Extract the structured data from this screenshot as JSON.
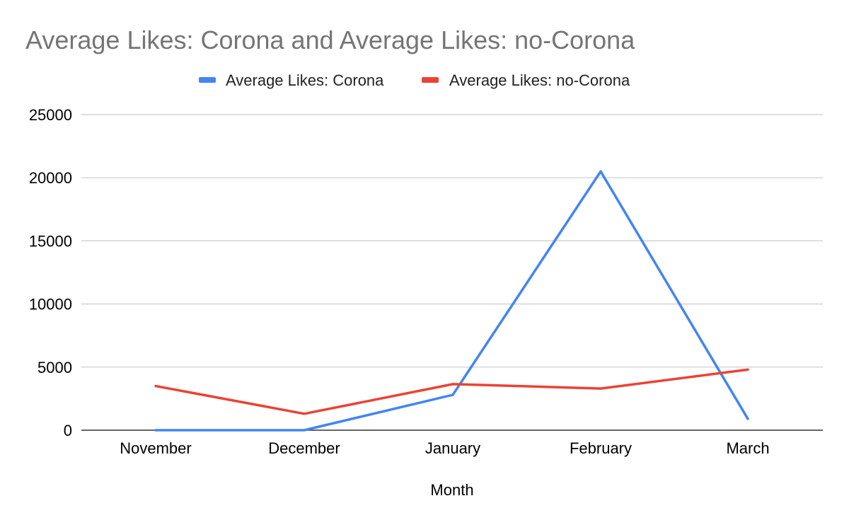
{
  "chart_data": {
    "type": "line",
    "title": "Average Likes: Corona and Average Likes: no-Corona",
    "xlabel": "Month",
    "ylabel": "",
    "categories": [
      "November",
      "December",
      "January",
      "February",
      "March"
    ],
    "ylim": [
      0,
      25000
    ],
    "yticks": [
      0,
      5000,
      10000,
      15000,
      20000,
      25000
    ],
    "grid": true,
    "legend_position": "top",
    "series": [
      {
        "name": "Average Likes: Corona",
        "color": "#4285f4",
        "values": [
          0,
          0,
          2800,
          20500,
          900
        ]
      },
      {
        "name": "Average Likes: no-Corona",
        "color": "#ea4335",
        "values": [
          3500,
          1300,
          3650,
          3300,
          4800
        ]
      }
    ]
  }
}
